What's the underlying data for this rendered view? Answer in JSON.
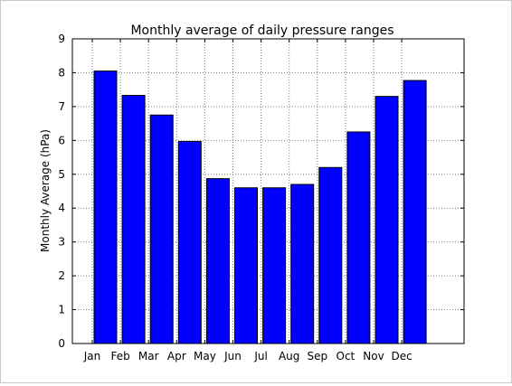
{
  "chart_data": {
    "type": "bar",
    "title": "Monthly average of daily pressure ranges",
    "xlabel": "",
    "ylabel": "Monthly Average (hPa)",
    "categories": [
      "Jan",
      "Feb",
      "Mar",
      "Apr",
      "May",
      "Jun",
      "Jul",
      "Aug",
      "Sep",
      "Oct",
      "Nov",
      "Dec"
    ],
    "values": [
      8.05,
      7.33,
      6.75,
      5.97,
      4.87,
      4.6,
      4.6,
      4.7,
      5.2,
      6.25,
      7.3,
      7.77
    ],
    "ylim": [
      0,
      9
    ],
    "yticks": [
      "0",
      "1",
      "2",
      "3",
      "4",
      "5",
      "6",
      "7",
      "8",
      "9"
    ],
    "grid": true,
    "legend": "none",
    "colors": {
      "bar_fill": "#0000ff",
      "bar_edge": "#000000",
      "grid": "#7f7f7f",
      "axes": "#000000"
    }
  }
}
